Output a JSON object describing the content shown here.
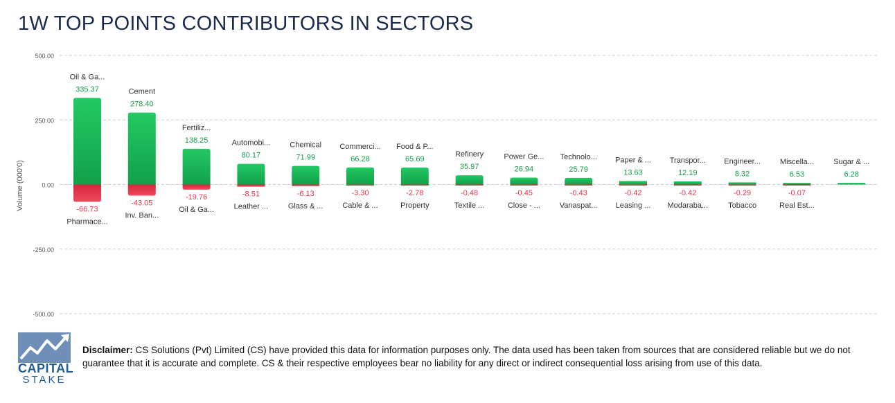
{
  "title": "1W TOP POINTS CONTRIBUTORS IN SECTORS",
  "colors": {
    "positive": "#1ec25e",
    "positive_dark": "#129c47",
    "negative": "#e8344a",
    "negative_dark": "#c81f36",
    "grid": "#cccccc",
    "axis_text": "#555555"
  },
  "chart_data": {
    "type": "bar",
    "ylabel": "Volume (000'0)",
    "ylim": [
      -500,
      500
    ],
    "yticks": [
      500,
      250,
      0,
      -250,
      -500
    ],
    "ytick_labels": [
      "500.00",
      "250.00",
      "0.00",
      "-250.00",
      "-500.00"
    ],
    "grid": true,
    "positive": {
      "labels": [
        "Oil & Ga...",
        "Cement",
        "Fertiliz...",
        "Automobi...",
        "Chemical",
        "Commerci...",
        "Food & P...",
        "Refinery",
        "Power Ge...",
        "Technolo...",
        "Paper & ...",
        "Transpor...",
        "Engineer...",
        "Miscella...",
        "Sugar & ..."
      ],
      "values": [
        335.37,
        278.4,
        138.25,
        80.17,
        71.99,
        66.28,
        65.69,
        35.97,
        26.94,
        25.79,
        13.63,
        12.19,
        8.32,
        6.53,
        6.28
      ],
      "value_labels": [
        "335.37",
        "278.40",
        "138.25",
        "80.17",
        "71.99",
        "66.28",
        "65.69",
        "35.97",
        "26.94",
        "25.79",
        "13.63",
        "12.19",
        "8.32",
        "6.53",
        "6.28"
      ]
    },
    "negative": {
      "labels": [
        "Pharmace...",
        "Inv. Ban...",
        "Oil & Ga...",
        "Leather ...",
        "Glass & ...",
        "Cable & ...",
        "Property",
        "Textile ...",
        "Close - ...",
        "Vanaspat...",
        "Leasing ...",
        "Modaraba...",
        "Tobacco",
        "Real Est..."
      ],
      "values": [
        -66.73,
        -43.05,
        -19.76,
        -8.51,
        -6.13,
        -3.3,
        -2.78,
        -0.48,
        -0.45,
        -0.43,
        -0.42,
        -0.42,
        -0.29,
        -0.07
      ],
      "value_labels": [
        "-66.73",
        "-43.05",
        "-19.76",
        "-8.51",
        "-6.13",
        "-3.30",
        "-2.78",
        "-0.48",
        "-0.45",
        "-0.43",
        "-0.42",
        "-0.42",
        "-0.29",
        "-0.07"
      ]
    }
  },
  "footer": {
    "logo_line1": "CAPITAL",
    "logo_line2": "STAKE",
    "disclaimer_label": "Disclaimer:",
    "disclaimer_text": " CS Solutions (Pvt) Limited (CS) have provided this data for information purposes only. The data used has been taken from sources that are considered reliable but we do not guarantee that it is accurate and complete. CS & their respective employees bear no liability for any direct or indirect consequential loss arising from use of this data."
  }
}
